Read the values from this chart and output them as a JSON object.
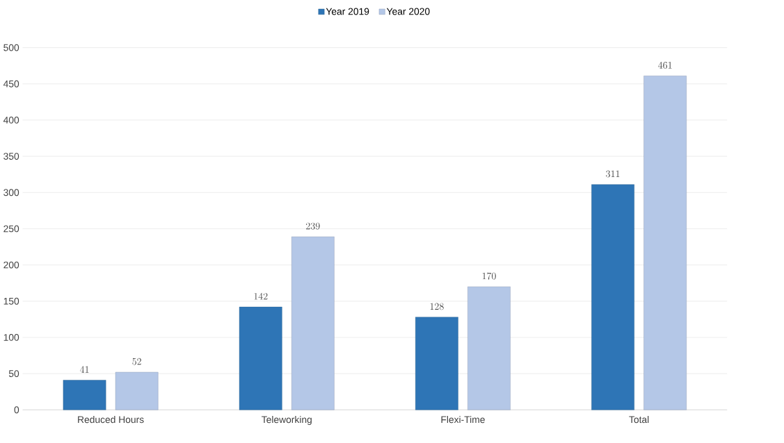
{
  "chart_data": {
    "type": "bar",
    "categories": [
      "Reduced Hours",
      "Teleworking",
      "Flexi-Time",
      "Total"
    ],
    "series": [
      {
        "name": "Year 2019",
        "color": "#2e75b6",
        "values": [
          41,
          142,
          128,
          311
        ]
      },
      {
        "name": "Year 2020",
        "color": "#b4c7e7",
        "values": [
          52,
          239,
          170,
          461
        ]
      }
    ],
    "ylim": [
      0,
      500
    ],
    "yticks": [
      0,
      50,
      100,
      150,
      200,
      250,
      300,
      350,
      400,
      450,
      500
    ],
    "grid": "y",
    "legend": "top",
    "data_labels": true
  }
}
